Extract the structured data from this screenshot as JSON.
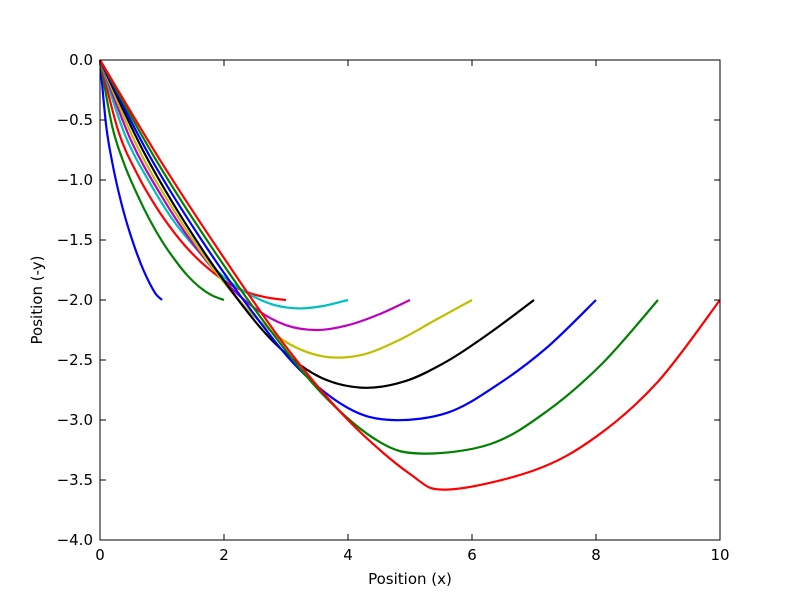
{
  "chart_data": {
    "type": "line",
    "title": "",
    "xlabel": "Position (x)",
    "ylabel": "Position (-y)",
    "xlim": [
      0,
      10
    ],
    "ylim": [
      -4.0,
      0.0
    ],
    "grid": false,
    "legend": "none",
    "x_ticks": [
      0,
      2,
      4,
      6,
      8,
      10
    ],
    "x_tick_labels": [
      "0",
      "2",
      "4",
      "6",
      "8",
      "10"
    ],
    "y_ticks": [
      0.0,
      -0.5,
      -1.0,
      -1.5,
      -2.0,
      -2.5,
      -3.0,
      -3.5,
      -4.0
    ],
    "y_tick_labels": [
      "0.0",
      "−0.5",
      "−1.0",
      "−1.5",
      "−2.0",
      "−2.5",
      "−3.0",
      "−3.5",
      "−4.0"
    ],
    "series": [
      {
        "color": "#0000ff",
        "x": [
          0,
          0.1,
          0.2,
          0.3,
          0.4,
          0.5,
          0.6,
          0.7,
          0.8,
          0.9,
          1.0
        ],
        "y": [
          0,
          -0.55,
          -0.86,
          -1.1,
          -1.3,
          -1.47,
          -1.62,
          -1.75,
          -1.86,
          -1.95,
          -2.0
        ]
      },
      {
        "color": "#008000",
        "x": [
          0,
          0.2,
          0.4,
          0.6,
          0.8,
          1.0,
          1.2,
          1.4,
          1.6,
          1.8,
          2.0
        ],
        "y": [
          0,
          -0.56,
          -0.88,
          -1.12,
          -1.33,
          -1.51,
          -1.66,
          -1.79,
          -1.89,
          -1.96,
          -2.0
        ]
      },
      {
        "color": "#ff0000",
        "x": [
          0,
          0.3,
          0.6,
          0.9,
          1.2,
          1.5,
          1.8,
          2.1,
          2.4,
          2.7,
          3.0
        ],
        "y": [
          0,
          -0.6,
          -0.95,
          -1.22,
          -1.44,
          -1.62,
          -1.76,
          -1.87,
          -1.94,
          -1.98,
          -2.0
        ]
      },
      {
        "color": "#00bfbf",
        "x": [
          0,
          0.4,
          0.8,
          1.2,
          1.6,
          2.0,
          2.4,
          2.8,
          3.2,
          3.6,
          4.0
        ],
        "y": [
          0,
          -0.62,
          -1.02,
          -1.35,
          -1.6,
          -1.81,
          -1.95,
          -2.04,
          -2.07,
          -2.05,
          -2.0
        ]
      },
      {
        "color": "#bf00bf",
        "x": [
          0,
          0.5,
          1.0,
          1.5,
          2.0,
          2.5,
          3.0,
          3.5,
          4.0,
          4.5,
          5.0
        ],
        "y": [
          0,
          -0.67,
          -1.14,
          -1.53,
          -1.84,
          -2.07,
          -2.21,
          -2.25,
          -2.21,
          -2.12,
          -2.0
        ]
      },
      {
        "color": "#bfbf00",
        "x": [
          0,
          0.6,
          1.2,
          1.8,
          2.4,
          3.0,
          3.6,
          4.2,
          4.8,
          5.4,
          6.0
        ],
        "y": [
          0,
          -0.72,
          -1.26,
          -1.72,
          -2.09,
          -2.35,
          -2.47,
          -2.46,
          -2.34,
          -2.17,
          -2.0
        ]
      },
      {
        "color": "#000000",
        "x": [
          0,
          0.7,
          1.4,
          2.1,
          2.8,
          3.5,
          4.2,
          4.9,
          5.6,
          6.3,
          7.0
        ],
        "y": [
          0,
          -0.76,
          -1.38,
          -1.91,
          -2.35,
          -2.63,
          -2.73,
          -2.68,
          -2.51,
          -2.27,
          -2.0
        ]
      },
      {
        "color": "#0000ff",
        "x": [
          0,
          0.8,
          1.6,
          2.4,
          3.2,
          4.0,
          4.7,
          5.6,
          6.4,
          7.2,
          8.0
        ],
        "y": [
          0,
          -0.8,
          -1.47,
          -2.06,
          -2.57,
          -2.9,
          -3.0,
          -2.94,
          -2.71,
          -2.4,
          -2.0
        ]
      },
      {
        "color": "#008000",
        "x": [
          0,
          0.9,
          1.8,
          2.7,
          3.6,
          4.5,
          5.2,
          6.3,
          7.2,
          8.1,
          9.0
        ],
        "y": [
          0,
          -0.83,
          -1.56,
          -2.22,
          -2.79,
          -3.18,
          -3.28,
          -3.2,
          -2.93,
          -2.53,
          -2.0
        ]
      },
      {
        "color": "#ff0000",
        "x": [
          0,
          1.0,
          2.0,
          3.0,
          4.0,
          5.0,
          5.6,
          7.0,
          8.0,
          9.0,
          10.0
        ],
        "y": [
          0,
          -0.86,
          -1.65,
          -2.39,
          -3.0,
          -3.45,
          -3.58,
          -3.42,
          -3.14,
          -2.68,
          -2.0
        ]
      }
    ]
  }
}
